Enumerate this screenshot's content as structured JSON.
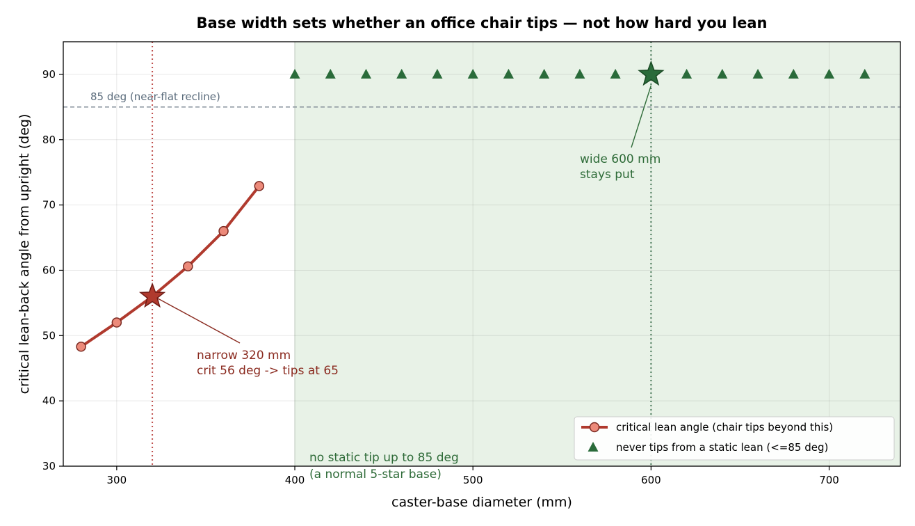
{
  "chart_data": {
    "type": "line",
    "title": "Base width sets whether an office chair tips — not how hard you lean",
    "xlabel": "caster-base diameter  (mm)",
    "ylabel": "critical lean-back angle from upright  (deg)",
    "xlim": [
      270,
      740
    ],
    "ylim": [
      30,
      95
    ],
    "xticks": [
      300,
      400,
      500,
      600,
      700
    ],
    "yticks": [
      30,
      40,
      50,
      60,
      70,
      80,
      90
    ],
    "grid": true,
    "legend_position": "bottom-right",
    "series": [
      {
        "name": "critical lean angle (chair tips beyond this)",
        "kind": "line-markers",
        "color": "#b03a2e",
        "marker_fill": "#ec8a7a",
        "points": [
          [
            280,
            48.3
          ],
          [
            300,
            52.0
          ],
          [
            320,
            56.0
          ],
          [
            340,
            60.6
          ],
          [
            360,
            66.0
          ],
          [
            380,
            72.9
          ]
        ]
      },
      {
        "name": "never tips from a static lean (<=85 deg)",
        "kind": "triangles",
        "color": "#2a6b3a",
        "points": [
          [
            400,
            90
          ],
          [
            420,
            90
          ],
          [
            440,
            90
          ],
          [
            460,
            90
          ],
          [
            480,
            90
          ],
          [
            500,
            90
          ],
          [
            520,
            90
          ],
          [
            540,
            90
          ],
          [
            560,
            90
          ],
          [
            580,
            90
          ],
          [
            600,
            90
          ],
          [
            620,
            90
          ],
          [
            640,
            90
          ],
          [
            660,
            90
          ],
          [
            680,
            90
          ],
          [
            700,
            90
          ],
          [
            720,
            90
          ]
        ]
      }
    ],
    "reference_lines": [
      {
        "axis": "y",
        "value": 85,
        "label": "85 deg (near-flat recline)",
        "color": "#7a8590",
        "style": "dashed"
      },
      {
        "axis": "x",
        "value": 320,
        "color": "#c0504d",
        "style": "dotted"
      },
      {
        "axis": "x",
        "value": 600,
        "color": "#4a7a5a",
        "style": "dotted"
      }
    ],
    "shaded_region": {
      "x_from": 400,
      "x_to": 740,
      "color": "#e8f2e7",
      "label_lines": [
        "no static tip up to 85 deg",
        "(a normal 5-star base)"
      ],
      "label_color": "#2e6b38"
    },
    "highlights": [
      {
        "x": 320,
        "y": 56.0,
        "color": "#b03a2e",
        "label_lines": [
          "narrow 320 mm",
          "crit 56 deg -> tips at 65"
        ],
        "label_color": "#8a2a1f"
      },
      {
        "x": 600,
        "y": 90,
        "color": "#2a6b3a",
        "label_lines": [
          "wide 600 mm",
          "stays put"
        ],
        "label_color": "#2e6b38"
      }
    ]
  }
}
